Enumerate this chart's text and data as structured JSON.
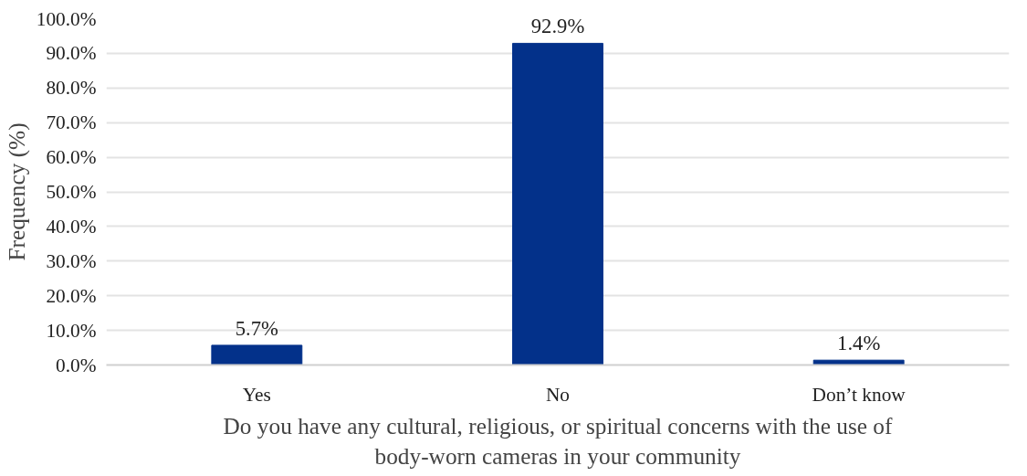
{
  "chart_data": {
    "type": "bar",
    "categories": [
      "Yes",
      "No",
      "Don’t know"
    ],
    "values": [
      5.7,
      92.9,
      1.4
    ],
    "value_labels": [
      "5.7%",
      "92.9%",
      "1.4%"
    ],
    "color": "#03318a",
    "xlabel": "Do you have any cultural, religious, or spiritual concerns with the use of body-worn cameras in your community",
    "ylabel": "Frequency (%)",
    "ylim": [
      0,
      100
    ],
    "yticks": [
      {
        "value": 0,
        "label": "0.0%"
      },
      {
        "value": 10,
        "label": "10.0%"
      },
      {
        "value": 20,
        "label": "20.0%"
      },
      {
        "value": 30,
        "label": "30.0%"
      },
      {
        "value": 40,
        "label": "40.0%"
      },
      {
        "value": 50,
        "label": "50.0%"
      },
      {
        "value": 60,
        "label": "60.0%"
      },
      {
        "value": 70,
        "label": "70.0%"
      },
      {
        "value": 80,
        "label": "80.0%"
      },
      {
        "value": 90,
        "label": "90.0%"
      },
      {
        "value": 100,
        "label": "100.0%"
      }
    ],
    "grid": "y"
  }
}
